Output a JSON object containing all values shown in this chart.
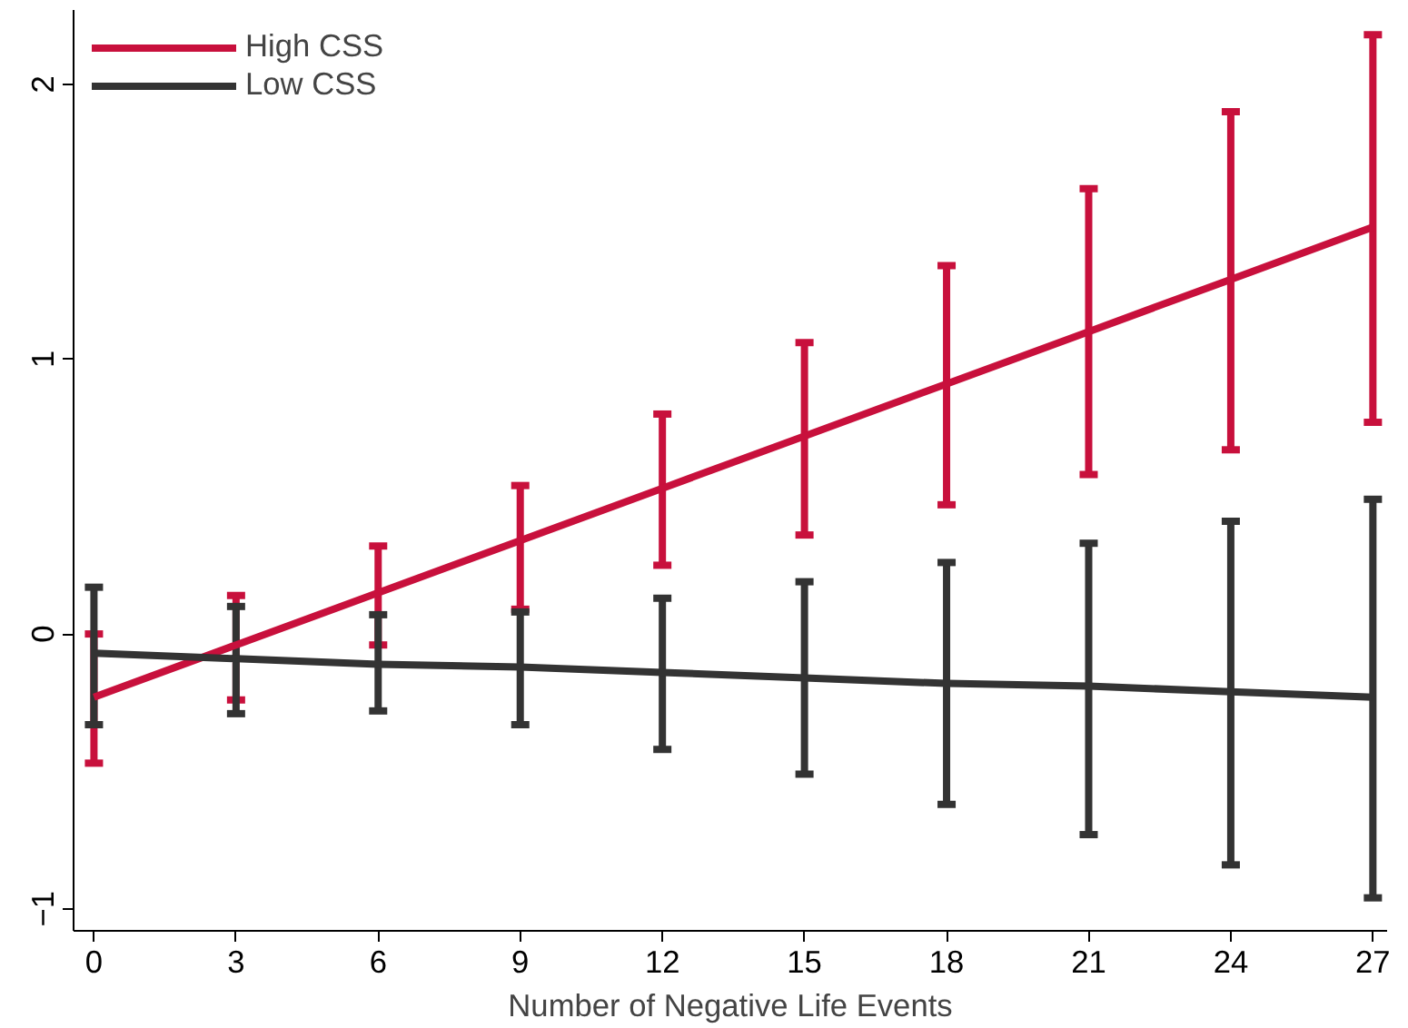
{
  "chart_data": {
    "type": "line",
    "xlabel": "Number of Negative Life Events",
    "x": [
      0,
      3,
      6,
      9,
      12,
      15,
      18,
      21,
      24,
      27
    ],
    "xlim": [
      -0.43,
      27.3
    ],
    "xticks": [
      0,
      3,
      6,
      9,
      12,
      15,
      18,
      21,
      24,
      27
    ],
    "ylim": [
      -1.08,
      2.27
    ],
    "yticks": [
      -1,
      0,
      1,
      2
    ],
    "grid": false,
    "legend": "top left",
    "marker": "none",
    "line_style": "solid",
    "series": [
      {
        "name": "High CSS",
        "color": "#c8103c",
        "values": [
          -0.23,
          -0.04,
          0.15,
          0.34,
          0.53,
          0.72,
          0.91,
          1.1,
          1.29,
          1.48
        ],
        "errors": [
          [
            -0.47,
            0.0
          ],
          [
            -0.24,
            0.14
          ],
          [
            -0.04,
            0.32
          ],
          [
            0.09,
            0.54
          ],
          [
            0.25,
            0.8
          ],
          [
            0.36,
            1.06
          ],
          [
            0.47,
            1.34
          ],
          [
            0.58,
            1.62
          ],
          [
            0.67,
            1.9
          ],
          [
            0.77,
            2.18
          ]
        ]
      },
      {
        "name": "Low CSS",
        "color": "#333333",
        "values": [
          -0.07,
          -0.09,
          -0.11,
          -0.12,
          -0.14,
          -0.16,
          -0.18,
          -0.19,
          -0.21,
          -0.23
        ],
        "errors": [
          [
            -0.33,
            0.17
          ],
          [
            -0.29,
            0.1
          ],
          [
            -0.28,
            0.07
          ],
          [
            -0.33,
            0.08
          ],
          [
            -0.42,
            0.13
          ],
          [
            -0.51,
            0.19
          ],
          [
            -0.62,
            0.26
          ],
          [
            -0.73,
            0.33
          ],
          [
            -0.84,
            0.41
          ],
          [
            -0.96,
            0.49
          ]
        ]
      }
    ]
  }
}
